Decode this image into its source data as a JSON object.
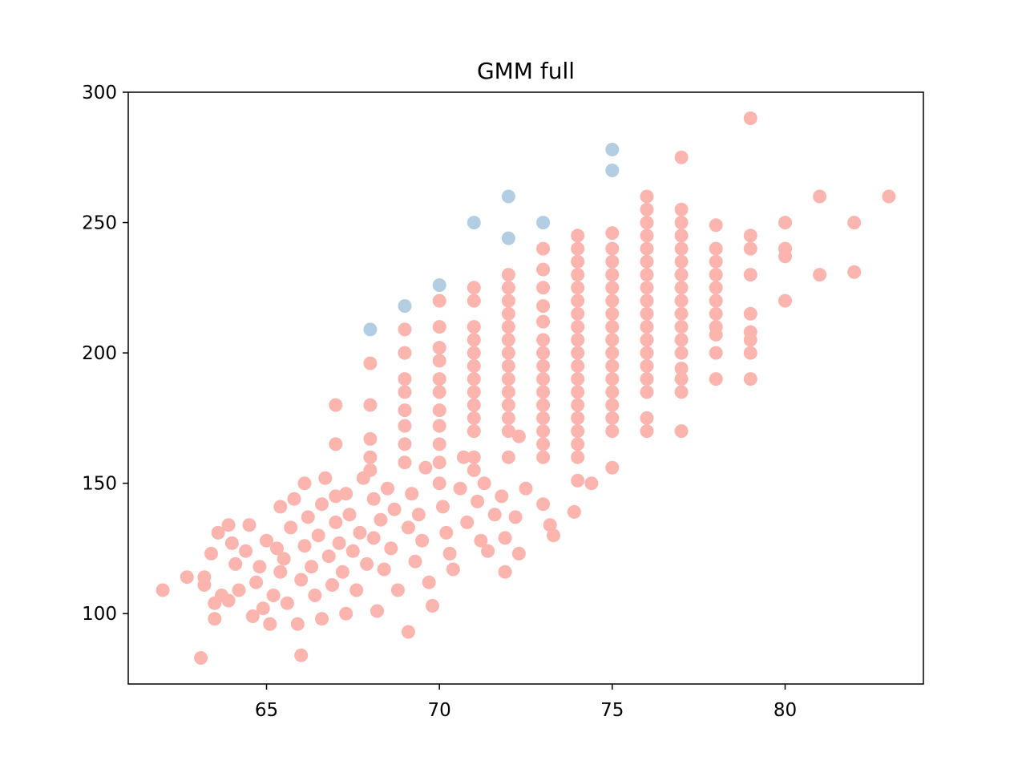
{
  "chart_data": {
    "type": "scatter",
    "title": "GMM full",
    "xlabel": "",
    "ylabel": "",
    "xlim": [
      61,
      84
    ],
    "ylim": [
      73,
      300
    ],
    "xticks": [
      65,
      70,
      75,
      80
    ],
    "yticks": [
      100,
      150,
      200,
      250,
      300
    ],
    "grid": false,
    "legend": "none",
    "colors": {
      "cluster_a": "#fbb4ae",
      "cluster_b": "#b3cde3"
    },
    "series": [
      {
        "color_key": "cluster_b",
        "points": [
          [
            68,
            209
          ],
          [
            69,
            218
          ],
          [
            70,
            226
          ],
          [
            71,
            250
          ],
          [
            72,
            260
          ],
          [
            72,
            244
          ],
          [
            73,
            250
          ],
          [
            75,
            278
          ],
          [
            75,
            270
          ]
        ]
      },
      {
        "color_key": "cluster_a",
        "points": [
          [
            62,
            109
          ],
          [
            62.7,
            114
          ],
          [
            63.1,
            83
          ],
          [
            63.2,
            114
          ],
          [
            63.2,
            111
          ],
          [
            63.4,
            123
          ],
          [
            63.5,
            98
          ],
          [
            63.5,
            104
          ],
          [
            63.6,
            131
          ],
          [
            63.7,
            107
          ],
          [
            63.9,
            134
          ],
          [
            63.9,
            105
          ],
          [
            64,
            127
          ],
          [
            64.1,
            119
          ],
          [
            64.2,
            109
          ],
          [
            64.4,
            124
          ],
          [
            64.5,
            134
          ],
          [
            64.6,
            99
          ],
          [
            64.7,
            112
          ],
          [
            64.8,
            118
          ],
          [
            64.9,
            102
          ],
          [
            65,
            128
          ],
          [
            65.1,
            96
          ],
          [
            65.2,
            107
          ],
          [
            65.3,
            125
          ],
          [
            65.4,
            141
          ],
          [
            65.4,
            116
          ],
          [
            65.5,
            121
          ],
          [
            65.6,
            104
          ],
          [
            65.7,
            133
          ],
          [
            65.8,
            144
          ],
          [
            65.9,
            96
          ],
          [
            66,
            113
          ],
          [
            66,
            84
          ],
          [
            66.1,
            150
          ],
          [
            66.1,
            126
          ],
          [
            66.2,
            137
          ],
          [
            66.3,
            118
          ],
          [
            66.4,
            107
          ],
          [
            66.5,
            130
          ],
          [
            66.6,
            142
          ],
          [
            66.6,
            98
          ],
          [
            66.7,
            152
          ],
          [
            66.8,
            122
          ],
          [
            66.9,
            111
          ],
          [
            67,
            180
          ],
          [
            67,
            165
          ],
          [
            67,
            145
          ],
          [
            67,
            135
          ],
          [
            67.1,
            127
          ],
          [
            67.2,
            116
          ],
          [
            67.3,
            100
          ],
          [
            67.3,
            146
          ],
          [
            67.4,
            138
          ],
          [
            67.5,
            124
          ],
          [
            67.6,
            109
          ],
          [
            67.7,
            131
          ],
          [
            67.8,
            152
          ],
          [
            67.9,
            119
          ],
          [
            68,
            196
          ],
          [
            68,
            180
          ],
          [
            68,
            167
          ],
          [
            68,
            160
          ],
          [
            68,
            155
          ],
          [
            68.1,
            144
          ],
          [
            68.1,
            129
          ],
          [
            68.2,
            101
          ],
          [
            68.3,
            136
          ],
          [
            68.4,
            117
          ],
          [
            68.5,
            148
          ],
          [
            68.6,
            125
          ],
          [
            68.7,
            140
          ],
          [
            68.8,
            109
          ],
          [
            69,
            209
          ],
          [
            69,
            200
          ],
          [
            69,
            190
          ],
          [
            69,
            185
          ],
          [
            69,
            178
          ],
          [
            69,
            172
          ],
          [
            69,
            165
          ],
          [
            69,
            158
          ],
          [
            69.1,
            133
          ],
          [
            69.1,
            93
          ],
          [
            69.2,
            146
          ],
          [
            69.3,
            120
          ],
          [
            69.4,
            138
          ],
          [
            69.5,
            128
          ],
          [
            69.6,
            156
          ],
          [
            69.7,
            112
          ],
          [
            69.8,
            103
          ],
          [
            70,
            220
          ],
          [
            70,
            210
          ],
          [
            70,
            202
          ],
          [
            70,
            197
          ],
          [
            70,
            190
          ],
          [
            70,
            185
          ],
          [
            70,
            178
          ],
          [
            70,
            172
          ],
          [
            70,
            165
          ],
          [
            70,
            158
          ],
          [
            70,
            150
          ],
          [
            70.1,
            141
          ],
          [
            70.2,
            131
          ],
          [
            70.3,
            123
          ],
          [
            70.4,
            117
          ],
          [
            70.6,
            148
          ],
          [
            70.7,
            160
          ],
          [
            70.8,
            135
          ],
          [
            71,
            225
          ],
          [
            71,
            220
          ],
          [
            71,
            210
          ],
          [
            71,
            205
          ],
          [
            71,
            200
          ],
          [
            71,
            195
          ],
          [
            71,
            190
          ],
          [
            71,
            185
          ],
          [
            71,
            180
          ],
          [
            71,
            175
          ],
          [
            71,
            170
          ],
          [
            71,
            160
          ],
          [
            71,
            155
          ],
          [
            71.1,
            143
          ],
          [
            71.2,
            128
          ],
          [
            71.3,
            150
          ],
          [
            71.4,
            124
          ],
          [
            71.6,
            138
          ],
          [
            71.8,
            145
          ],
          [
            72,
            230
          ],
          [
            72,
            225
          ],
          [
            72,
            220
          ],
          [
            72,
            215
          ],
          [
            72,
            210
          ],
          [
            72,
            205
          ],
          [
            72,
            200
          ],
          [
            72,
            195
          ],
          [
            72,
            190
          ],
          [
            72,
            185
          ],
          [
            72,
            180
          ],
          [
            72,
            175
          ],
          [
            72,
            170
          ],
          [
            72,
            160
          ],
          [
            71.9,
            116
          ],
          [
            71.9,
            129
          ],
          [
            72.2,
            137
          ],
          [
            72.3,
            168
          ],
          [
            72.3,
            123
          ],
          [
            72.5,
            148
          ],
          [
            73,
            240
          ],
          [
            73,
            232
          ],
          [
            73,
            225
          ],
          [
            73,
            218
          ],
          [
            73,
            212
          ],
          [
            73,
            205
          ],
          [
            73,
            200
          ],
          [
            73,
            195
          ],
          [
            73,
            190
          ],
          [
            73,
            185
          ],
          [
            73,
            180
          ],
          [
            73,
            175
          ],
          [
            73,
            170
          ],
          [
            73,
            165
          ],
          [
            73,
            160
          ],
          [
            73,
            142
          ],
          [
            73.2,
            134
          ],
          [
            73.3,
            130
          ],
          [
            73.9,
            139
          ],
          [
            74,
            245
          ],
          [
            74,
            240
          ],
          [
            74,
            235
          ],
          [
            74,
            230
          ],
          [
            74,
            225
          ],
          [
            74,
            220
          ],
          [
            74,
            215
          ],
          [
            74,
            210
          ],
          [
            74,
            205
          ],
          [
            74,
            200
          ],
          [
            74,
            195
          ],
          [
            74,
            190
          ],
          [
            74,
            185
          ],
          [
            74,
            180
          ],
          [
            74,
            175
          ],
          [
            74,
            170
          ],
          [
            74,
            165
          ],
          [
            74,
            160
          ],
          [
            74,
            151
          ],
          [
            74.4,
            150
          ],
          [
            75,
            246
          ],
          [
            75,
            240
          ],
          [
            75,
            235
          ],
          [
            75,
            230
          ],
          [
            75,
            225
          ],
          [
            75,
            220
          ],
          [
            75,
            215
          ],
          [
            75,
            210
          ],
          [
            75,
            205
          ],
          [
            75,
            200
          ],
          [
            75,
            195
          ],
          [
            75,
            190
          ],
          [
            75,
            185
          ],
          [
            75,
            180
          ],
          [
            75,
            175
          ],
          [
            75,
            170
          ],
          [
            75,
            156
          ],
          [
            76,
            260
          ],
          [
            76,
            255
          ],
          [
            76,
            250
          ],
          [
            76,
            245
          ],
          [
            76,
            240
          ],
          [
            76,
            235
          ],
          [
            76,
            230
          ],
          [
            76,
            225
          ],
          [
            76,
            220
          ],
          [
            76,
            215
          ],
          [
            76,
            210
          ],
          [
            76,
            205
          ],
          [
            76,
            200
          ],
          [
            76,
            195
          ],
          [
            76,
            190
          ],
          [
            76,
            185
          ],
          [
            76,
            175
          ],
          [
            76,
            170
          ],
          [
            77,
            275
          ],
          [
            77,
            255
          ],
          [
            77,
            250
          ],
          [
            77,
            245
          ],
          [
            77,
            240
          ],
          [
            77,
            235
          ],
          [
            77,
            230
          ],
          [
            77,
            225
          ],
          [
            77,
            220
          ],
          [
            77,
            215
          ],
          [
            77,
            210
          ],
          [
            77,
            205
          ],
          [
            77,
            200
          ],
          [
            77,
            194
          ],
          [
            77,
            190
          ],
          [
            77,
            185
          ],
          [
            77,
            170
          ],
          [
            78,
            249
          ],
          [
            78,
            240
          ],
          [
            78,
            235
          ],
          [
            78,
            230
          ],
          [
            78,
            225
          ],
          [
            78,
            220
          ],
          [
            78,
            215
          ],
          [
            78,
            210
          ],
          [
            78,
            207
          ],
          [
            78,
            200
          ],
          [
            78,
            190
          ],
          [
            79,
            290
          ],
          [
            79,
            245
          ],
          [
            79,
            240
          ],
          [
            79,
            230
          ],
          [
            79,
            215
          ],
          [
            79,
            208
          ],
          [
            79,
            205
          ],
          [
            79,
            200
          ],
          [
            79,
            190
          ],
          [
            80,
            250
          ],
          [
            80,
            240
          ],
          [
            80,
            237
          ],
          [
            80,
            220
          ],
          [
            81,
            260
          ],
          [
            81,
            230
          ],
          [
            82,
            250
          ],
          [
            82,
            231
          ],
          [
            83,
            260
          ]
        ]
      }
    ]
  }
}
